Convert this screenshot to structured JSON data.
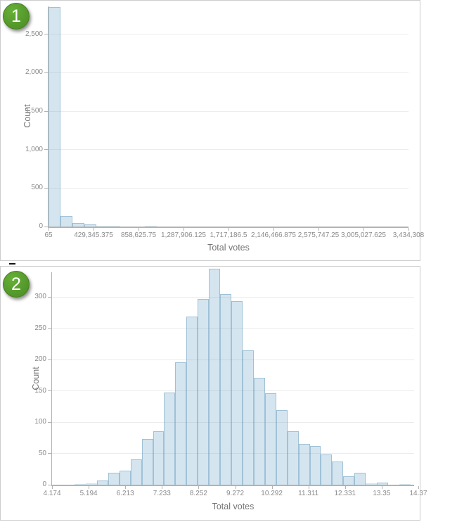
{
  "figures": [
    {
      "badge": "1",
      "xlabel": "Total votes",
      "ylabel": "Count"
    },
    {
      "badge": "2",
      "xlabel": "Total votes",
      "ylabel": "Count"
    }
  ],
  "colors": {
    "badge_green": "#55992c",
    "bar_fill": "rgba(82,152,196,0.25)",
    "bar_border": "rgba(96,148,182,0.45)",
    "gridline": "#ececec",
    "axis_line": "#b3b3b3",
    "tick_text": "#8a8a8a",
    "axis_title": "#757575",
    "panel_border": "#cccccc"
  },
  "chart_data": [
    {
      "type": "bar",
      "subtype": "histogram",
      "title": "",
      "xlabel": "Total votes",
      "ylabel": "Count",
      "x_tick_labels": [
        "65",
        "429,345.375",
        "858,625.75",
        "1,287,906.125",
        "1,717,186.5",
        "2,146,466.875",
        "2,575,747.25",
        "3,005,027.625",
        "3,434,308"
      ],
      "y_ticks": [
        0,
        500,
        1000,
        1500,
        2000,
        2500
      ],
      "bin_start": 65,
      "bin_width": 114474.77,
      "counts": [
        2850,
        137,
        48,
        29,
        10,
        5,
        3,
        2,
        8,
        3,
        1,
        1,
        0,
        0,
        0,
        0,
        0,
        0,
        0,
        0,
        0,
        0,
        0,
        0,
        0,
        0,
        0,
        0,
        0,
        1
      ],
      "xlim": [
        65,
        3434308
      ],
      "ylim": [
        0,
        2862
      ],
      "grid": true,
      "legend": false
    },
    {
      "type": "bar",
      "subtype": "histogram",
      "title": "",
      "xlabel": "Total votes",
      "ylabel": "Count",
      "x_tick_labels": [
        "4.174",
        "5.194",
        "6.213",
        "7.233",
        "8.252",
        "9.272",
        "10.292",
        "11.311",
        "12.331",
        "13.35",
        "14.37"
      ],
      "y_ticks": [
        0,
        50,
        100,
        150,
        200,
        250,
        300
      ],
      "bin_start": 4.8,
      "bin_width": 0.312,
      "counts": [
        1,
        2,
        7,
        19,
        23,
        41,
        73,
        85,
        147,
        196,
        268,
        297,
        345,
        305,
        293,
        215,
        171,
        146,
        119,
        85,
        65,
        62,
        48,
        37,
        13,
        19,
        2,
        3,
        0,
        1
      ],
      "xlim": [
        4.174,
        14.88
      ],
      "ylim": [
        0,
        349
      ],
      "grid": true,
      "legend": false
    }
  ]
}
